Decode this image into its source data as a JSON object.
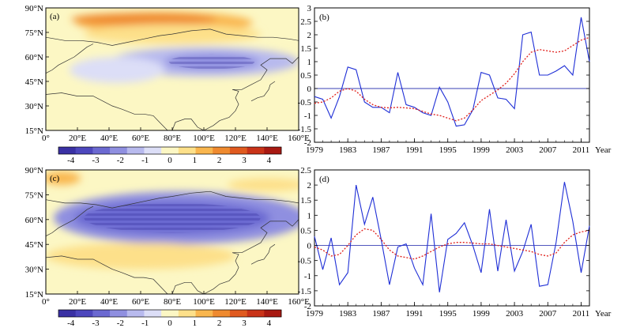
{
  "chart_data": [
    {
      "panel": "(a)",
      "type": "heatmap",
      "x_ticks": [
        "0°",
        "20°E",
        "40°E",
        "60°E",
        "80°E",
        "100°E",
        "120°E",
        "140°E",
        "160°E"
      ],
      "y_ticks": [
        "15°N",
        "30°N",
        "45°N",
        "60°N",
        "75°N",
        "90°N"
      ],
      "xlim": [
        0,
        160
      ],
      "ylim": [
        15,
        90
      ],
      "colorbar_ticks": [
        "-4",
        "-3",
        "-2",
        "-1",
        "0",
        "1",
        "2",
        "3",
        "4"
      ],
      "colorbar_range": [
        -4.5,
        4.5
      ],
      "colorbar_colors": [
        "#3a31a4",
        "#4d47bd",
        "#6b69d1",
        "#8f8fe0",
        "#b8baee",
        "#dcdef7",
        "#fcf7c4",
        "#fde08a",
        "#f9b64e",
        "#ef8a2f",
        "#e05a1f",
        "#c93318",
        "#a81912"
      ],
      "features": [
        {
          "lon": 75,
          "lat": 81,
          "rx": 56,
          "ry": 6.5,
          "value": 1.6
        },
        {
          "lon": 62,
          "lat": 83,
          "rx": 46,
          "ry": 4,
          "value": 1.8
        },
        {
          "lon": 80,
          "lat": 74,
          "rx": 56,
          "ry": 6,
          "value": 0.6
        },
        {
          "lon": 100,
          "lat": 57,
          "rx": 60,
          "ry": 9,
          "value": -1.5
        },
        {
          "lon": 105,
          "lat": 57,
          "rx": 30,
          "ry": 5,
          "value": -2.2
        },
        {
          "lon": 45,
          "lat": 52,
          "rx": 30,
          "ry": 8,
          "value": -0.5
        }
      ]
    },
    {
      "panel": "(b)",
      "type": "line",
      "x_ticks": [
        "1979",
        "1983",
        "1987",
        "1991",
        "1995",
        "1999",
        "2003",
        "2007",
        "2011"
      ],
      "x_unit": "Year",
      "y_ticks": [
        "-2",
        "-1.5",
        "-1",
        "-0.5",
        "0",
        "0.5",
        "1",
        "1.5",
        "2",
        "2.5",
        "3"
      ],
      "xlim": [
        1979,
        2012
      ],
      "ylim": [
        -2,
        3
      ],
      "zero_line": 0,
      "series": [
        {
          "style": "solid",
          "color": "#1f2fd6",
          "x": [
            1979,
            1980,
            1981,
            1982,
            1983,
            1984,
            1985,
            1986,
            1987,
            1988,
            1989,
            1990,
            1991,
            1992,
            1993,
            1994,
            1995,
            1996,
            1997,
            1998,
            1999,
            2000,
            2001,
            2002,
            2003,
            2004,
            2005,
            2006,
            2007,
            2008,
            2009,
            2010,
            2011,
            2012
          ],
          "values": [
            -0.3,
            -0.4,
            -1.1,
            -0.3,
            0.8,
            0.7,
            -0.5,
            -0.7,
            -0.7,
            -0.9,
            0.6,
            -0.6,
            -0.7,
            -0.9,
            -1.0,
            0.05,
            -0.5,
            -1.4,
            -1.35,
            -0.8,
            0.6,
            0.5,
            -0.35,
            -0.4,
            -0.75,
            2.0,
            2.1,
            0.5,
            0.5,
            0.65,
            0.85,
            0.5,
            2.65,
            1.0
          ]
        },
        {
          "style": "dotted",
          "color": "#e0201b",
          "x": [
            1979,
            1980,
            1981,
            1982,
            1983,
            1984,
            1985,
            1986,
            1987,
            1988,
            1989,
            1990,
            1991,
            1992,
            1993,
            1994,
            1995,
            1996,
            1997,
            1998,
            1999,
            2000,
            2001,
            2002,
            2003,
            2004,
            2005,
            2006,
            2007,
            2008,
            2009,
            2010,
            2011,
            2012
          ],
          "values": [
            -0.55,
            -0.5,
            -0.35,
            -0.1,
            0.0,
            -0.1,
            -0.4,
            -0.6,
            -0.7,
            -0.72,
            -0.7,
            -0.72,
            -0.75,
            -0.85,
            -0.95,
            -1.0,
            -1.1,
            -1.2,
            -1.1,
            -0.8,
            -0.45,
            -0.25,
            -0.05,
            0.2,
            0.55,
            1.0,
            1.35,
            1.45,
            1.4,
            1.35,
            1.4,
            1.6,
            1.8,
            1.9
          ]
        }
      ]
    },
    {
      "panel": "(c)",
      "type": "heatmap",
      "x_ticks": [
        "0°",
        "20°E",
        "40°E",
        "60°E",
        "80°E",
        "100°E",
        "120°E",
        "140°E",
        "160°E"
      ],
      "y_ticks": [
        "15°N",
        "30°N",
        "45°N",
        "60°N",
        "75°N",
        "90°N"
      ],
      "xlim": [
        0,
        160
      ],
      "ylim": [
        15,
        90
      ],
      "colorbar_ticks": [
        "-4",
        "-3",
        "-2",
        "-1",
        "0",
        "1",
        "2",
        "3",
        "4"
      ],
      "colorbar_range": [
        -4.5,
        4.5
      ],
      "colorbar_colors": [
        "#3a31a4",
        "#4d47bd",
        "#6b69d1",
        "#8f8fe0",
        "#b8baee",
        "#dcdef7",
        "#fcf7c4",
        "#fde08a",
        "#f9b64e",
        "#ef8a2f",
        "#e05a1f",
        "#c93318",
        "#a81912"
      ],
      "features": [
        {
          "lon": 85,
          "lat": 61,
          "rx": 80,
          "ry": 16,
          "value": -1.8
        },
        {
          "lon": 80,
          "lat": 61,
          "rx": 62,
          "ry": 10,
          "value": -2.6
        },
        {
          "lon": 10,
          "lat": 85,
          "rx": 12,
          "ry": 4,
          "value": 1.6
        },
        {
          "lon": 60,
          "lat": 38,
          "rx": 60,
          "ry": 8,
          "value": 0.6
        },
        {
          "lon": 140,
          "lat": 81,
          "rx": 25,
          "ry": 4,
          "value": 0.6
        }
      ]
    },
    {
      "panel": "(d)",
      "type": "line",
      "x_ticks": [
        "1979",
        "1983",
        "1987",
        "1991",
        "1995",
        "1999",
        "2003",
        "2007",
        "2011"
      ],
      "x_unit": "Year",
      "y_ticks": [
        "-2",
        "-1.5",
        "-1",
        "-0.5",
        "0",
        "0.5",
        "1",
        "1.5",
        "2",
        "2.5"
      ],
      "xlim": [
        1979,
        2012
      ],
      "ylim": [
        -2,
        2.5
      ],
      "zero_line": 0,
      "series": [
        {
          "style": "solid",
          "color": "#1f2fd6",
          "x": [
            1979,
            1980,
            1981,
            1982,
            1983,
            1984,
            1985,
            1986,
            1987,
            1988,
            1989,
            1990,
            1991,
            1992,
            1993,
            1994,
            1995,
            1996,
            1997,
            1998,
            1999,
            2000,
            2001,
            2002,
            2003,
            2004,
            2005,
            2006,
            2007,
            2008,
            2009,
            2010,
            2011,
            2012
          ],
          "values": [
            0.3,
            -0.8,
            0.25,
            -1.3,
            -0.9,
            2.0,
            0.7,
            1.6,
            0.2,
            -1.3,
            -0.05,
            0.05,
            -0.75,
            -1.3,
            1.05,
            -1.55,
            0.2,
            0.4,
            0.75,
            0.0,
            -0.9,
            1.2,
            -0.85,
            0.85,
            -0.85,
            -0.2,
            0.7,
            -1.35,
            -1.3,
            0.1,
            2.1,
            0.8,
            -0.9,
            0.65
          ]
        },
        {
          "style": "dotted",
          "color": "#e0201b",
          "x": [
            1979,
            1980,
            1981,
            1982,
            1983,
            1984,
            1985,
            1986,
            1987,
            1988,
            1989,
            1990,
            1991,
            1992,
            1993,
            1994,
            1995,
            1996,
            1997,
            1998,
            1999,
            2000,
            2001,
            2002,
            2003,
            2004,
            2005,
            2006,
            2007,
            2008,
            2009,
            2010,
            2011,
            2012
          ],
          "values": [
            -0.05,
            -0.15,
            -0.35,
            -0.3,
            0.0,
            0.35,
            0.55,
            0.5,
            0.2,
            -0.15,
            -0.35,
            -0.4,
            -0.45,
            -0.35,
            -0.2,
            -0.05,
            0.05,
            0.1,
            0.1,
            0.08,
            0.05,
            0.05,
            0.0,
            -0.05,
            -0.1,
            -0.15,
            -0.2,
            -0.3,
            -0.35,
            -0.25,
            0.1,
            0.35,
            0.45,
            0.5
          ]
        }
      ]
    }
  ]
}
